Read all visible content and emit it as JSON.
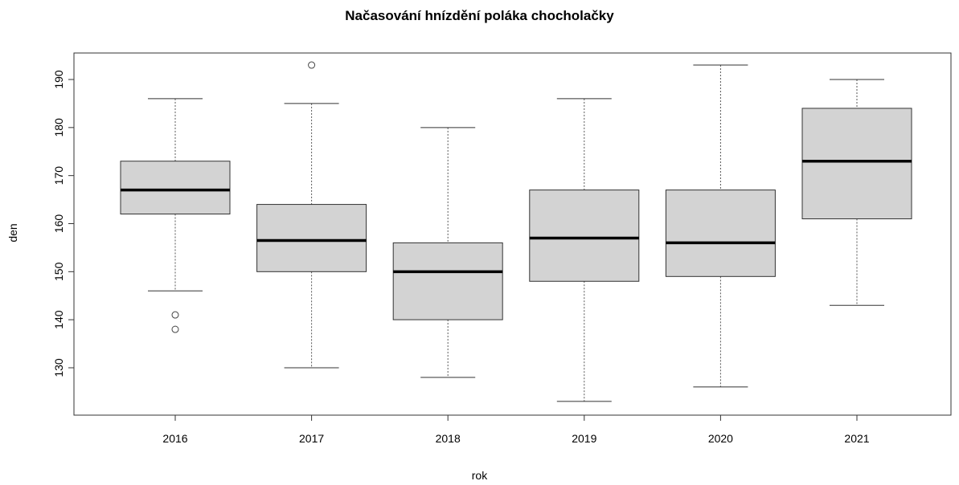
{
  "chart_data": {
    "type": "boxplot",
    "title": "Načasování hnízdění poláka chocholačky",
    "xlabel": "rok",
    "ylabel": "den",
    "ylim": [
      120,
      195
    ],
    "yticks": [
      130,
      140,
      150,
      160,
      170,
      180,
      190
    ],
    "grid": false,
    "box_fill": "#d3d3d3",
    "categories": [
      "2016",
      "2017",
      "2018",
      "2019",
      "2020",
      "2021"
    ],
    "boxes": [
      {
        "category": "2016",
        "whisker_low": 146,
        "q1": 162,
        "median": 167,
        "q3": 173,
        "whisker_high": 186,
        "outliers": [
          141,
          138
        ]
      },
      {
        "category": "2017",
        "whisker_low": 130,
        "q1": 150,
        "median": 156.5,
        "q3": 164,
        "whisker_high": 185,
        "outliers": [
          193
        ]
      },
      {
        "category": "2018",
        "whisker_low": 128,
        "q1": 140,
        "median": 150,
        "q3": 156,
        "whisker_high": 180,
        "outliers": []
      },
      {
        "category": "2019",
        "whisker_low": 123,
        "q1": 148,
        "median": 157,
        "q3": 167,
        "whisker_high": 186,
        "outliers": []
      },
      {
        "category": "2020",
        "whisker_low": 126,
        "q1": 149,
        "median": 156,
        "q3": 167,
        "whisker_high": 193,
        "outliers": []
      },
      {
        "category": "2021",
        "whisker_low": 143,
        "q1": 161,
        "median": 173,
        "q3": 184,
        "whisker_high": 190,
        "outliers": []
      }
    ]
  }
}
